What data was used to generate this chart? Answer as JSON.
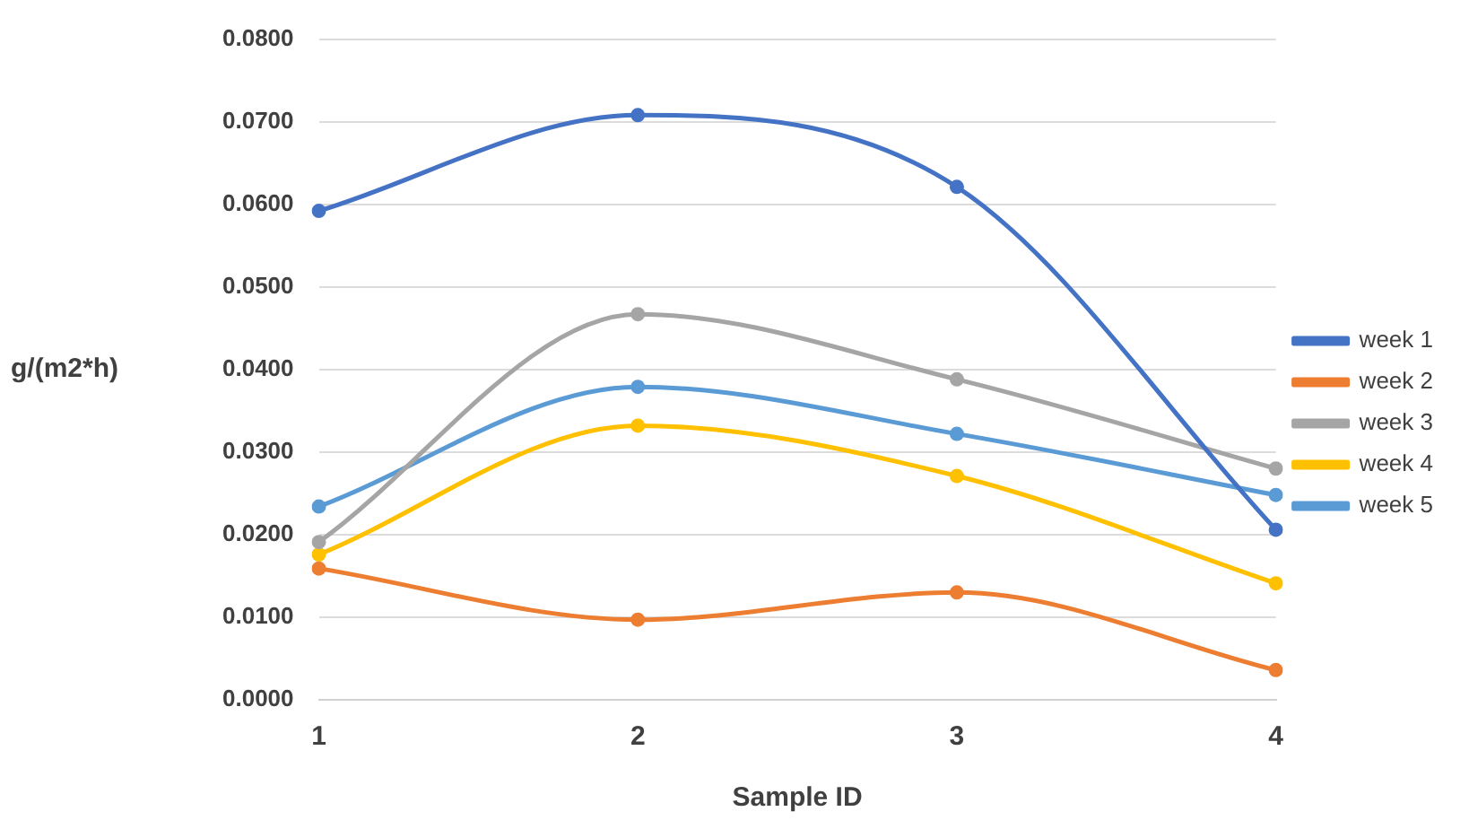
{
  "chart_data": {
    "type": "line",
    "xlabel": "Sample ID",
    "ylabel": "g/(m2*h)",
    "categories": [
      "1",
      "2",
      "3",
      "4"
    ],
    "series": [
      {
        "name": "week 1",
        "color": "#4472c4",
        "values": [
          0.0592,
          0.0708,
          0.0621,
          0.0206
        ]
      },
      {
        "name": "week 2",
        "color": "#ed7d31",
        "values": [
          0.0159,
          0.0097,
          0.013,
          0.0036
        ]
      },
      {
        "name": "week 3",
        "color": "#a5a5a5",
        "values": [
          0.0191,
          0.0467,
          0.0388,
          0.028
        ]
      },
      {
        "name": "week 4",
        "color": "#ffc000",
        "values": [
          0.0176,
          0.0332,
          0.0271,
          0.0141
        ]
      },
      {
        "name": "week 5",
        "color": "#5b9bd5",
        "values": [
          0.0234,
          0.0379,
          0.0322,
          0.0248
        ]
      }
    ],
    "ylim": [
      0,
      0.08
    ],
    "yticks": [
      {
        "value": 0,
        "label": "0.0000"
      },
      {
        "value": 0.01,
        "label": "0.0100"
      },
      {
        "value": 0.02,
        "label": "0.0200"
      },
      {
        "value": 0.03,
        "label": "0.0300"
      },
      {
        "value": 0.04,
        "label": "0.0400"
      },
      {
        "value": 0.05,
        "label": "0.0500"
      },
      {
        "value": 0.06,
        "label": "0.0600"
      },
      {
        "value": 0.07,
        "label": "0.0700"
      },
      {
        "value": 0.08,
        "label": "0.0800"
      }
    ],
    "grid": "y",
    "legend": "right",
    "marker": "circle",
    "line_style": "solid"
  }
}
